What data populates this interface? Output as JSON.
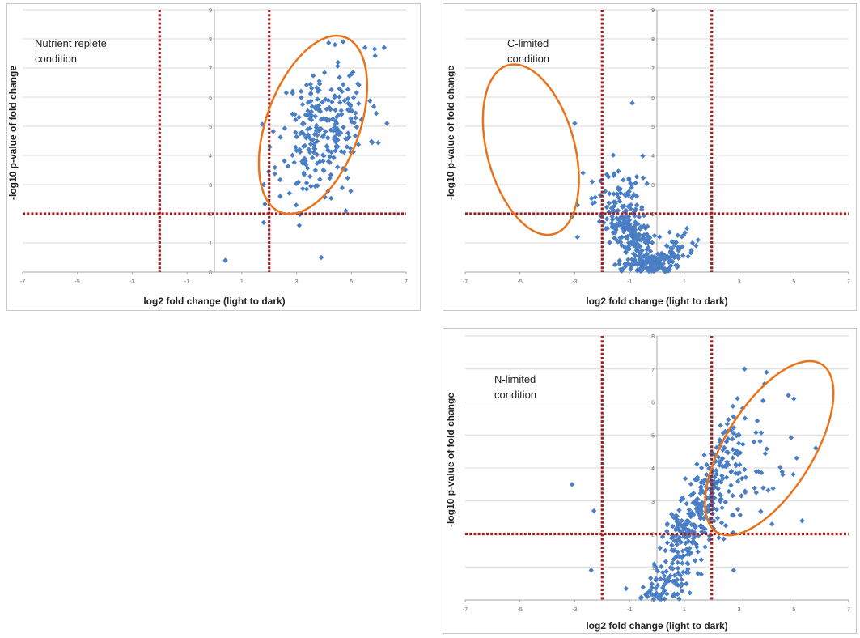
{
  "chart_data": [
    {
      "type": "scatter",
      "id": "nutrient-replete",
      "title": "Nutrient replete condition",
      "title_lines": [
        "Nutrient replete",
        "condition"
      ],
      "xlabel": "log2 fold change (light to dark)",
      "ylabel": "-log10 p-value of fold change",
      "xlim": [
        -7,
        7
      ],
      "ylim": [
        0,
        9
      ],
      "xticks": [
        "-7",
        "-5",
        "-3",
        "-1",
        "1",
        "3",
        "5",
        "7"
      ],
      "yticks": [
        "0",
        "1",
        "2",
        "3",
        "4",
        "5",
        "6",
        "7",
        "8",
        "9"
      ],
      "grid": true,
      "thresholds": {
        "x": [
          -2,
          2
        ],
        "y": 2
      },
      "highlight_ellipse": {
        "cx": 3.6,
        "cy": 5.05,
        "rx": 1.7,
        "ry": 3.2,
        "rotate_deg": 20
      },
      "generator": {
        "seed": 11,
        "clusters": [
          {
            "n": 260,
            "cx": 4.0,
            "cy": 4.9,
            "sx": 0.8,
            "sy": 1.1,
            "corr": 0.25
          }
        ]
      },
      "points": [
        [
          0.4,
          0.4
        ],
        [
          3.9,
          0.5
        ],
        [
          1.8,
          1.7
        ],
        [
          3.1,
          1.6
        ],
        [
          1.8,
          3.0
        ],
        [
          2.4,
          2.6
        ],
        [
          4.8,
          2.1
        ],
        [
          6.3,
          5.1
        ],
        [
          4.7,
          7.9
        ],
        [
          5.5,
          7.7
        ],
        [
          6.2,
          7.7
        ],
        [
          4.4,
          7.8
        ]
      ],
      "series_color": "#4a7ec5"
    },
    {
      "type": "scatter",
      "id": "c-limited",
      "title": "C-limited condition",
      "title_lines": [
        "C-limited",
        "condition"
      ],
      "xlabel": "log2 fold change (light to dark)",
      "ylabel": "-log10 p-value of fold change",
      "xlim": [
        -7,
        7
      ],
      "ylim": [
        0,
        9
      ],
      "xticks": [
        "-7",
        "-5",
        "-3",
        "-1",
        "1",
        "3",
        "5",
        "7"
      ],
      "yticks": [
        "0",
        "1",
        "2",
        "3",
        "4",
        "5",
        "6",
        "7",
        "8",
        "9"
      ],
      "grid": true,
      "thresholds": {
        "x": [
          -2,
          2
        ],
        "y": 2
      },
      "highlight_ellipse": {
        "cx": -4.6,
        "cy": 4.2,
        "rx": 1.6,
        "ry": 3.0,
        "rotate_deg": -15
      },
      "generator": {
        "seed": 23,
        "clusters": [
          {
            "n": 230,
            "cx": -1.0,
            "cy": 1.3,
            "sx": 0.5,
            "sy": 0.75,
            "corr": -0.6
          },
          {
            "n": 70,
            "cx": -0.2,
            "cy": 0.3,
            "sx": 0.4,
            "sy": 0.2,
            "corr": 0
          },
          {
            "n": 55,
            "cx": 0.6,
            "cy": 0.6,
            "sx": 0.35,
            "sy": 0.35,
            "corr": 0.5
          },
          {
            "n": 30,
            "cx": -1.4,
            "cy": 2.8,
            "sx": 0.5,
            "sy": 0.5,
            "corr": 0
          }
        ]
      },
      "points": [
        [
          -0.9,
          5.8
        ],
        [
          -3.0,
          5.1
        ],
        [
          -2.7,
          3.4
        ],
        [
          -2.9,
          2.3
        ],
        [
          -3.1,
          1.9
        ],
        [
          -2.9,
          1.2
        ],
        [
          1.5,
          1.1
        ],
        [
          1.3,
          1.0
        ],
        [
          1.1,
          1.5
        ],
        [
          -1.8,
          1.5
        ]
      ],
      "series_color": "#4a7ec5"
    },
    {
      "type": "scatter",
      "id": "n-limited",
      "title": "N-limited condition",
      "title_lines": [
        "N-limited",
        "condition"
      ],
      "xlabel": "log2 fold change (light to dark)",
      "ylabel": "-log10 p-value of fold change",
      "xlim": [
        -7,
        7
      ],
      "ylim": [
        0,
        8
      ],
      "xticks": [
        "-7",
        "-5",
        "-3",
        "-1",
        "1",
        "3",
        "5",
        "7"
      ],
      "yticks": [
        "0",
        "1",
        "2",
        "3",
        "4",
        "5",
        "6",
        "7",
        "8"
      ],
      "grid": true,
      "thresholds": {
        "x": [
          -2,
          2
        ],
        "y": 2
      },
      "highlight_ellipse": {
        "cx": 4.1,
        "cy": 4.6,
        "rx": 1.6,
        "ry": 3.0,
        "rotate_deg": 32
      },
      "generator": {
        "seed": 37,
        "clusters": [
          {
            "n": 330,
            "cx": 1.2,
            "cy": 2.2,
            "sx": 0.75,
            "sy": 1.35,
            "corr": 0.85
          },
          {
            "n": 90,
            "cx": 2.9,
            "cy": 4.0,
            "sx": 0.9,
            "sy": 1.0,
            "corr": 0.3
          }
        ]
      },
      "points": [
        [
          -3.1,
          3.5
        ],
        [
          -2.3,
          2.7
        ],
        [
          -2.4,
          0.9
        ],
        [
          4.0,
          6.9
        ],
        [
          3.2,
          7.0
        ],
        [
          4.8,
          6.2
        ],
        [
          5.0,
          6.1
        ],
        [
          5.8,
          4.6
        ],
        [
          5.1,
          4.3
        ],
        [
          5.3,
          2.4
        ],
        [
          4.2,
          2.3
        ],
        [
          2.8,
          0.9
        ],
        [
          1.5,
          0.8
        ],
        [
          0.2,
          0.2
        ]
      ],
      "series_color": "#4a7ec5"
    }
  ]
}
